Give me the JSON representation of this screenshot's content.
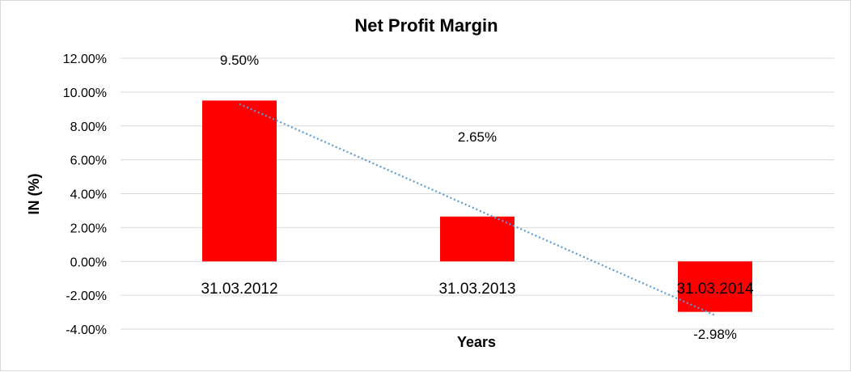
{
  "chart_data": {
    "type": "bar",
    "title": "Net Profit Margin",
    "xlabel": "Years",
    "ylabel": "IN (%)",
    "categories": [
      "31.03.2012",
      "31.03.2013",
      "31.03.2014"
    ],
    "series": [
      {
        "values": [
          9.5,
          2.65,
          -2.98
        ],
        "data_labels": [
          "9.50%",
          "2.65%",
          "-2.98%"
        ],
        "color": "#ff0000"
      }
    ],
    "trendline": {
      "type": "linear",
      "style": "dotted",
      "color": "#5b9bd5"
    },
    "ylim": [
      -4,
      12
    ],
    "yticks": [
      12,
      10,
      8,
      6,
      4,
      2,
      0,
      -2,
      -4
    ],
    "ytick_labels": [
      "12.00%",
      "10.00%",
      "8.00%",
      "6.00%",
      "4.00%",
      "2.00%",
      "0.00%",
      "-2.00%",
      "-4.00%"
    ],
    "grid": true,
    "legend": "none"
  }
}
